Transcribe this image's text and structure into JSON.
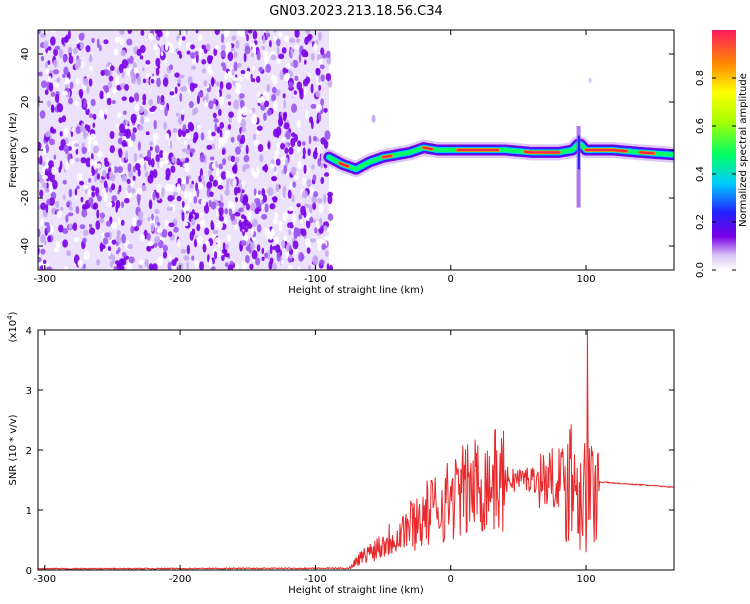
{
  "title": "GN03.2023.213.18.56.C34",
  "colors": {
    "snr_line": "#e8282a",
    "axis": "#000000",
    "colormap": [
      "#ffffff",
      "#dcc8f6",
      "#7a00e6",
      "#2222ff",
      "#00ccff",
      "#00ff66",
      "#aaff00",
      "#ffff00",
      "#ff8800",
      "#ff2244"
    ]
  },
  "chart_data": [
    {
      "type": "heatmap",
      "xlabel": "Height of straight line (km)",
      "ylabel": "Frequency (Hz)",
      "xlim": [
        -305,
        165
      ],
      "ylim": [
        -50,
        50
      ],
      "xticks": [
        -300,
        -200,
        -100,
        0,
        100
      ],
      "yticks": [
        -40,
        -20,
        0,
        20,
        40
      ],
      "colorbar": {
        "label": "Normalized spectral amplitude",
        "range": [
          0.0,
          1.0
        ],
        "ticks": [
          0.0,
          0.2,
          0.4,
          0.6,
          0.8
        ],
        "tick_labels": [
          "0.0",
          "0.2",
          "0.4",
          "0.6",
          "0.8"
        ]
      },
      "noise_region_x": [
        -305,
        -90
      ],
      "signal_ridge": {
        "x": [
          -90,
          -80,
          -70,
          -60,
          -50,
          -40,
          -30,
          -20,
          -10,
          0,
          20,
          40,
          60,
          80,
          90,
          95,
          100,
          120,
          140,
          165
        ],
        "frequency": [
          -3,
          -6,
          -8,
          -5,
          -3,
          -2,
          -1,
          1,
          0,
          0,
          0,
          0,
          -1,
          -1,
          0,
          3,
          0,
          0,
          -1,
          -2
        ]
      }
    },
    {
      "type": "line",
      "xlabel": "Height of straight line (km)",
      "ylabel": "SNR (10 * v/v)",
      "y_multiplier": "(x10^4)",
      "y_multiplier_base": "(x10",
      "y_multiplier_exp": "4",
      "y_multiplier_close": ")",
      "xlim": [
        -305,
        165
      ],
      "ylim": [
        0,
        4
      ],
      "xticks": [
        -300,
        -200,
        -100,
        0,
        100
      ],
      "yticks": [
        0,
        1,
        2,
        3,
        4
      ],
      "series": [
        {
          "envelope_x": [
            -305,
            -75,
            -70,
            -60,
            -50,
            -40,
            -30,
            -20,
            -10,
            0,
            10,
            20,
            30,
            40,
            50,
            60,
            70,
            80,
            90,
            95,
            100,
            105,
            110,
            120,
            140,
            165
          ],
          "envelope_mean": [
            0.02,
            0.03,
            0.15,
            0.3,
            0.45,
            0.6,
            0.75,
            0.9,
            1.05,
            1.2,
            1.32,
            1.42,
            1.48,
            1.5,
            1.52,
            1.52,
            1.52,
            1.55,
            1.6,
            1.5,
            1.2,
            1.3,
            1.47,
            1.45,
            1.42,
            1.38
          ],
          "peak_value": 4.0,
          "peak_x": 101
        }
      ]
    }
  ]
}
